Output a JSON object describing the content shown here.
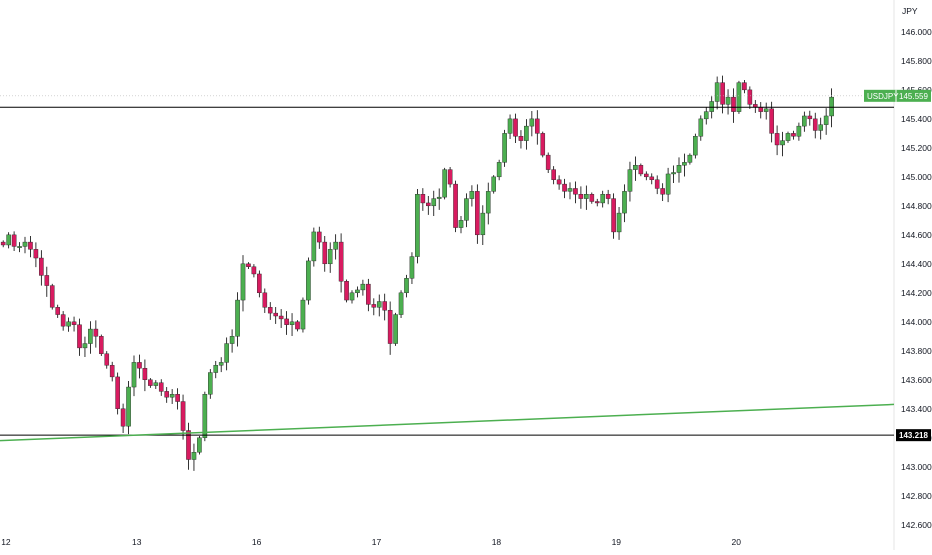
{
  "chart_data": {
    "type": "candlestick",
    "currency": "JPY",
    "symbol": "USDJPY",
    "last_price": "145.559",
    "colors": {
      "up": "#4caf50",
      "down": "#d81b60",
      "wick": "#000000",
      "hline": "#000000",
      "trend": "#4caf50",
      "badge": "#4caf50"
    },
    "y_range": [
      142.55,
      146.22
    ],
    "y_ticks": [
      "142.600",
      "142.800",
      "143.000",
      "143.200",
      "143.400",
      "143.600",
      "143.800",
      "144.000",
      "144.200",
      "144.400",
      "144.600",
      "144.800",
      "145.000",
      "145.200",
      "145.400",
      "145.600",
      "145.800",
      "146.000"
    ],
    "x_labels": [
      {
        "label": "12",
        "index": 0.5
      },
      {
        "label": "13",
        "index": 24.5
      },
      {
        "label": "16",
        "index": 46.5
      },
      {
        "label": "17",
        "index": 68.5
      },
      {
        "label": "18",
        "index": 90.5
      },
      {
        "label": "19",
        "index": 112.5
      },
      {
        "label": "20",
        "index": 134.5
      }
    ],
    "horizontal_levels": [
      {
        "value": 145.48,
        "label": ""
      },
      {
        "value": 143.218,
        "label": "143.218"
      }
    ],
    "trendline": {
      "from": {
        "index": -1,
        "value": 143.18
      },
      "to": {
        "index": 152,
        "value": 143.43
      }
    },
    "close_series": [
      144.53,
      144.6,
      144.52,
      144.52,
      144.55,
      144.5,
      144.44,
      144.32,
      144.25,
      144.1,
      144.05,
      143.97,
      144.0,
      143.98,
      143.82,
      143.85,
      143.95,
      143.9,
      143.78,
      143.7,
      143.62,
      143.4,
      143.28,
      143.55,
      143.72,
      143.68,
      143.6,
      143.56,
      143.58,
      143.52,
      143.48,
      143.5,
      143.45,
      143.25,
      143.05,
      143.1,
      143.2,
      143.5,
      143.65,
      143.7,
      143.72,
      143.85,
      143.9,
      144.15,
      144.4,
      144.38,
      144.33,
      144.2,
      144.1,
      144.06,
      144.04,
      144.02,
      143.98,
      144.0,
      143.95,
      144.15,
      144.42,
      144.62,
      144.55,
      144.4,
      144.5,
      144.55,
      144.28,
      144.15,
      144.2,
      144.22,
      144.26,
      144.12,
      144.1,
      144.14,
      144.08,
      143.85,
      144.05,
      144.2,
      144.3,
      144.45,
      144.88,
      144.82,
      144.8,
      144.85,
      144.86,
      145.05,
      144.95,
      144.65,
      144.7,
      144.85,
      144.9,
      144.6,
      144.75,
      144.9,
      145.0,
      145.1,
      145.3,
      145.4,
      145.28,
      145.25,
      145.35,
      145.4,
      145.3,
      145.15,
      145.05,
      144.98,
      144.95,
      144.9,
      144.92,
      144.88,
      144.85,
      144.88,
      144.83,
      144.82,
      144.88,
      144.85,
      144.62,
      144.75,
      144.9,
      145.05,
      145.08,
      145.02,
      145.0,
      144.98,
      144.92,
      144.88,
      145.02,
      145.03,
      145.08,
      145.1,
      145.15,
      145.28,
      145.4,
      145.45,
      145.52,
      145.65,
      145.5,
      145.55,
      145.45,
      145.65,
      145.6,
      145.5,
      145.48,
      145.45,
      145.47,
      145.3,
      145.22,
      145.25,
      145.3,
      145.28,
      145.35,
      145.42,
      145.4,
      145.32,
      145.36,
      145.42,
      145.55
    ]
  }
}
